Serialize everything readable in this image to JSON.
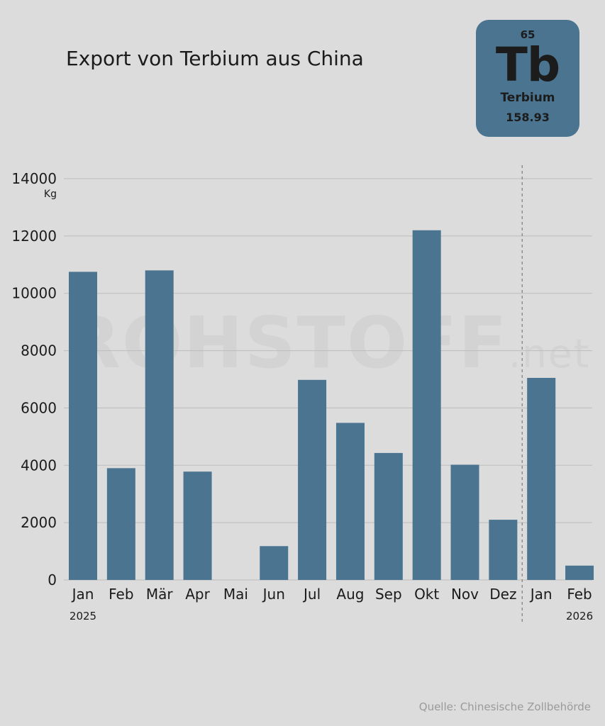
{
  "chart_data": {
    "type": "bar",
    "title": "Export von Terbium aus China",
    "ylabel": "Kg",
    "ylim": [
      0,
      14000
    ],
    "yticks": [
      0,
      2000,
      4000,
      6000,
      8000,
      10000,
      12000,
      14000
    ],
    "categories": [
      "Jan",
      "Feb",
      "Mär",
      "Apr",
      "Mai",
      "Jun",
      "Jul",
      "Aug",
      "Sep",
      "Okt",
      "Nov",
      "Dez",
      "Jan",
      "Feb"
    ],
    "values": [
      10750,
      3900,
      10800,
      3780,
      0,
      1180,
      6980,
      5480,
      4430,
      12200,
      4020,
      2100,
      7050,
      500
    ],
    "year_labels": [
      "2025",
      "2026"
    ],
    "bar_color": "#4a7490",
    "grid": true,
    "year_divider": "between Dez and Jan"
  },
  "element_tile": {
    "number": "65",
    "symbol": "Tb",
    "name": "Terbium",
    "mass": "158.93",
    "color": "#4a7490"
  },
  "watermark": {
    "main": "ROHSTOFF",
    "suffix": ".net"
  },
  "source": "Quelle: Chinesische Zollbehörde"
}
